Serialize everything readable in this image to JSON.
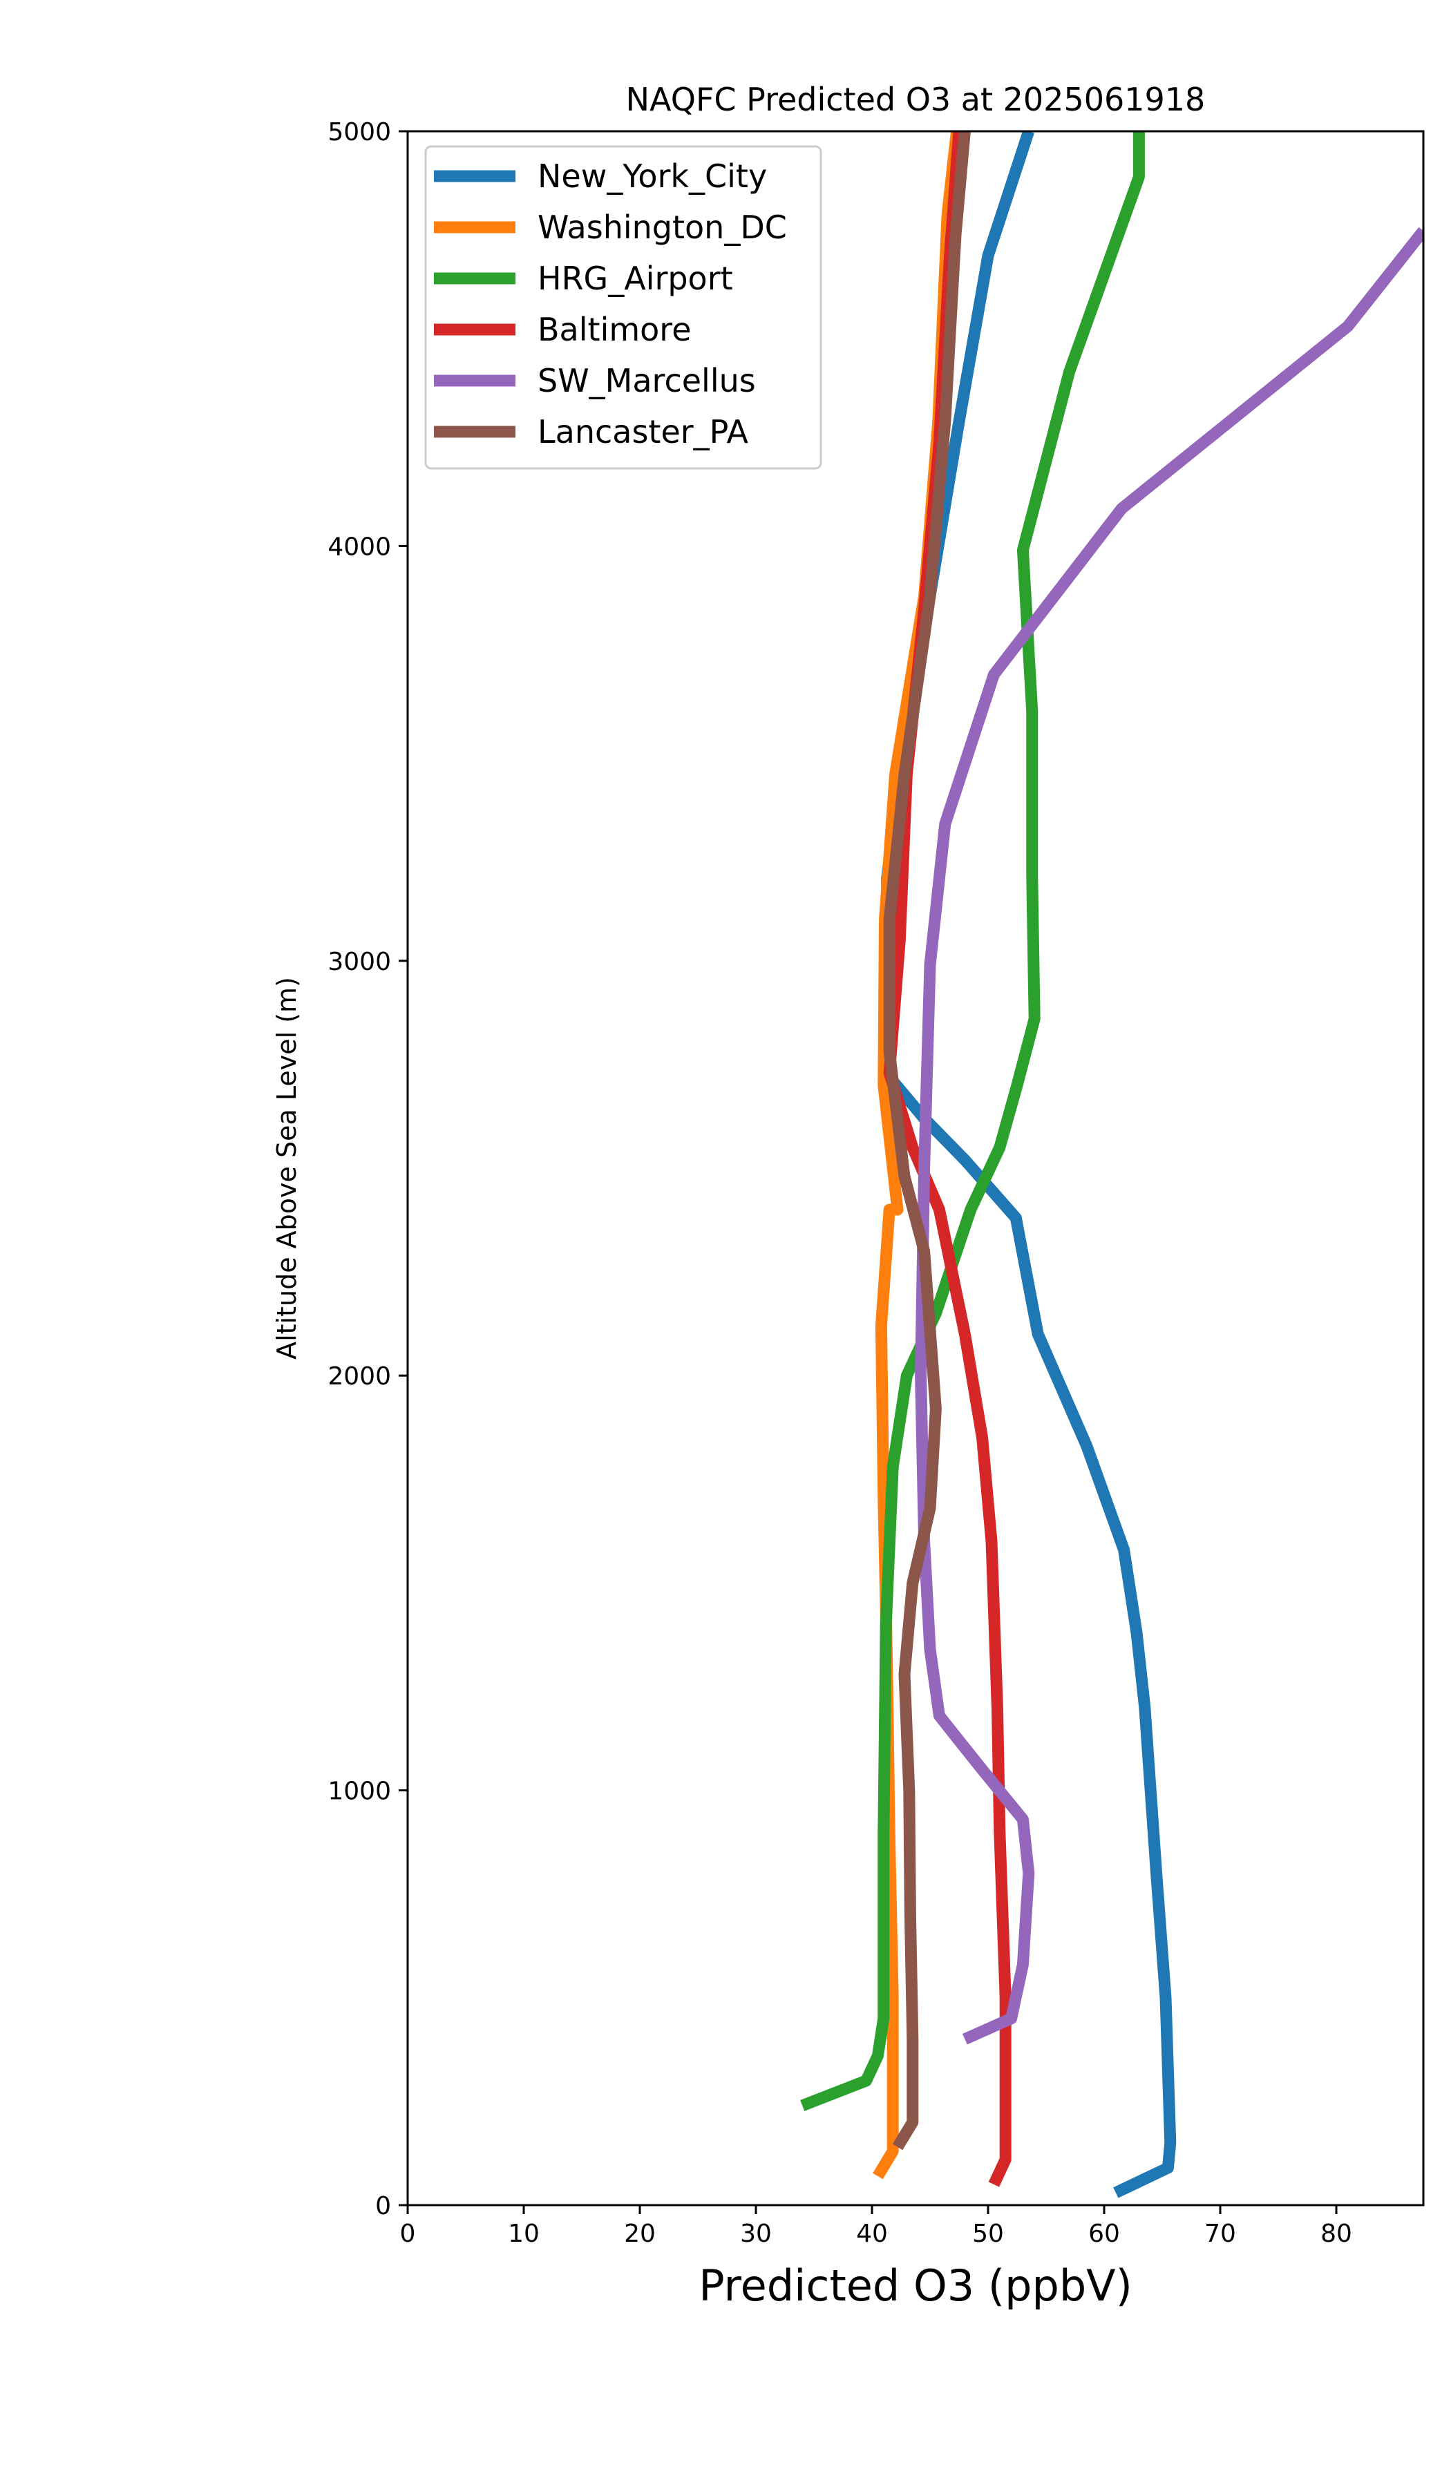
{
  "chart_data": {
    "type": "line",
    "title": "NAQFC Predicted O3 at 2025061918",
    "xlabel": "Predicted O3 (ppbV)",
    "ylabel": "Altitude Above Sea Level (m)",
    "xlim": [
      0,
      87.5
    ],
    "ylim": [
      0,
      5000
    ],
    "xticks": [
      "0",
      "10",
      "20",
      "30",
      "40",
      "50",
      "60",
      "70",
      "80"
    ],
    "yticks": [
      "0",
      "1000",
      "2000",
      "3000",
      "4000",
      "5000"
    ],
    "grid": false,
    "legend_position": "top-left",
    "series": [
      {
        "name": "New_York_City",
        "color": "#1f77b4",
        "points": [
          [
            61.0,
            30
          ],
          [
            65.5,
            90
          ],
          [
            65.7,
            150
          ],
          [
            65.3,
            500
          ],
          [
            64.5,
            800
          ],
          [
            63.5,
            1200
          ],
          [
            62.8,
            1380
          ],
          [
            61.7,
            1580
          ],
          [
            58.5,
            1830
          ],
          [
            54.3,
            2100
          ],
          [
            52.4,
            2380
          ],
          [
            48.0,
            2520
          ],
          [
            44.5,
            2620
          ],
          [
            41.5,
            2720
          ],
          [
            41.2,
            2900
          ],
          [
            41.3,
            3200
          ],
          [
            43.0,
            3600
          ],
          [
            45.0,
            3880
          ],
          [
            47.5,
            4300
          ],
          [
            50.0,
            4700
          ],
          [
            53.5,
            5000
          ]
        ]
      },
      {
        "name": "Washington_DC",
        "color": "#ff7f0e",
        "points": [
          [
            40.5,
            70
          ],
          [
            41.8,
            130
          ],
          [
            41.8,
            500
          ],
          [
            41.5,
            900
          ],
          [
            41.3,
            1300
          ],
          [
            41.0,
            1700
          ],
          [
            40.8,
            2120
          ],
          [
            41.5,
            2400
          ],
          [
            42.2,
            2400
          ],
          [
            41.0,
            2700
          ],
          [
            41.1,
            3100
          ],
          [
            42.0,
            3450
          ],
          [
            44.5,
            3880
          ],
          [
            45.7,
            4300
          ],
          [
            46.5,
            4800
          ],
          [
            47.3,
            5000
          ]
        ]
      },
      {
        "name": "HRG_Airport",
        "color": "#2ca02c",
        "points": [
          [
            34.0,
            240
          ],
          [
            39.5,
            300
          ],
          [
            40.5,
            360
          ],
          [
            41.0,
            450
          ],
          [
            41.0,
            900
          ],
          [
            41.2,
            1400
          ],
          [
            41.8,
            1780
          ],
          [
            43.0,
            2000
          ],
          [
            45.5,
            2150
          ],
          [
            48.5,
            2400
          ],
          [
            51.0,
            2550
          ],
          [
            52.5,
            2700
          ],
          [
            54.0,
            2860
          ],
          [
            53.8,
            3200
          ],
          [
            53.8,
            3600
          ],
          [
            53.0,
            3990
          ],
          [
            57.0,
            4420
          ],
          [
            63.0,
            4890
          ],
          [
            63.0,
            5000
          ]
        ]
      },
      {
        "name": "Baltimore",
        "color": "#d62728",
        "points": [
          [
            50.5,
            50
          ],
          [
            51.5,
            110
          ],
          [
            51.5,
            500
          ],
          [
            51.0,
            900
          ],
          [
            50.8,
            1200
          ],
          [
            50.3,
            1600
          ],
          [
            49.5,
            1850
          ],
          [
            48.0,
            2100
          ],
          [
            45.8,
            2400
          ],
          [
            43.5,
            2550
          ],
          [
            41.5,
            2730
          ],
          [
            42.4,
            3050
          ],
          [
            43.0,
            3450
          ],
          [
            44.5,
            3850
          ],
          [
            45.8,
            4250
          ],
          [
            46.7,
            4700
          ],
          [
            47.5,
            5000
          ]
        ]
      },
      {
        "name": "SW_Marcellus",
        "color": "#9467bd",
        "points": [
          [
            48.0,
            400
          ],
          [
            52.0,
            450
          ],
          [
            53.0,
            580
          ],
          [
            53.5,
            800
          ],
          [
            53.0,
            930
          ],
          [
            49.5,
            1050
          ],
          [
            47.5,
            1120
          ],
          [
            45.8,
            1180
          ],
          [
            45.0,
            1340
          ],
          [
            44.5,
            1600
          ],
          [
            44.2,
            2000
          ],
          [
            44.5,
            2500
          ],
          [
            45.0,
            2990
          ],
          [
            46.3,
            3330
          ],
          [
            50.5,
            3690
          ],
          [
            61.5,
            4090
          ],
          [
            81.0,
            4530
          ],
          [
            87.5,
            4760
          ]
        ]
      },
      {
        "name": "Lancaster_PA",
        "color": "#8c564b",
        "points": [
          [
            42.2,
            140
          ],
          [
            43.5,
            200
          ],
          [
            43.5,
            400
          ],
          [
            43.3,
            700
          ],
          [
            43.2,
            1000
          ],
          [
            42.8,
            1280
          ],
          [
            43.5,
            1500
          ],
          [
            45.0,
            1680
          ],
          [
            45.5,
            1920
          ],
          [
            44.5,
            2300
          ],
          [
            42.8,
            2480
          ],
          [
            41.5,
            2780
          ],
          [
            41.5,
            3100
          ],
          [
            42.8,
            3450
          ],
          [
            45.0,
            3880
          ],
          [
            46.3,
            4300
          ],
          [
            47.2,
            4750
          ],
          [
            48.0,
            5000
          ]
        ]
      }
    ]
  }
}
